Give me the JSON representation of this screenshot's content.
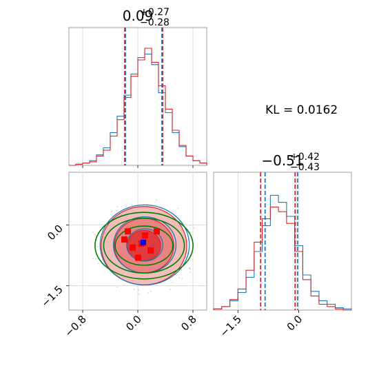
{
  "chart_data": {
    "type": "corner",
    "kl_label": "KL = 0.0162",
    "colors": {
      "series_a": "#1f77b4",
      "series_b": "#d62728",
      "gaussian": "#008000",
      "true_point": "#0000ff",
      "samples": "#ff0000"
    },
    "param1": {
      "title_value": "0.09",
      "title_plus": "+0.27",
      "title_minus": "−0.28",
      "median": 0.09,
      "plus": 0.27,
      "minus": 0.28,
      "range": [
        -1.0,
        1.0
      ],
      "ticks": [
        -0.8,
        0.0,
        0.8
      ],
      "tick_labels": [
        "−0.8",
        "0.0",
        "0.8"
      ],
      "quantiles_b": [
        -0.19,
        0.36
      ],
      "quantiles_a": [
        -0.18,
        0.35
      ]
    },
    "param2": {
      "title_value": "−0.51",
      "title_plus": "+0.42",
      "title_minus": "−0.43",
      "median": -0.51,
      "plus": 0.42,
      "minus": 0.43,
      "range": [
        -2.1,
        1.3
      ],
      "ticks": [
        -1.5,
        0.0
      ],
      "tick_labels": [
        "−1.5",
        "0.0"
      ],
      "quantiles_b": [
        -0.94,
        -0.09
      ],
      "quantiles_a": [
        -0.83,
        -0.03
      ]
    },
    "joint_points_b": [
      [
        -0.15,
        -0.15
      ],
      [
        0.1,
        -0.25
      ],
      [
        0.27,
        -0.15
      ],
      [
        -0.08,
        -0.55
      ],
      [
        0.18,
        -0.62
      ],
      [
        0.0,
        -0.8
      ],
      [
        -0.2,
        -0.35
      ],
      [
        0.05,
        -0.45
      ]
    ],
    "true_point": [
      0.08,
      -0.43
    ],
    "hist1": [
      {
        "x": -1.0,
        "a": 0,
        "b": 0
      },
      {
        "x": -0.9,
        "a": 0.01,
        "b": 0.01
      },
      {
        "x": -0.8,
        "a": 0.02,
        "b": 0.02
      },
      {
        "x": -0.7,
        "a": 0.04,
        "b": 0.03
      },
      {
        "x": -0.6,
        "a": 0.09,
        "b": 0.08
      },
      {
        "x": -0.5,
        "a": 0.15,
        "b": 0.13
      },
      {
        "x": -0.4,
        "a": 0.28,
        "b": 0.25
      },
      {
        "x": -0.3,
        "a": 0.42,
        "b": 0.39
      },
      {
        "x": -0.2,
        "a": 0.6,
        "b": 0.58
      },
      {
        "x": -0.1,
        "a": 0.78,
        "b": 0.76
      },
      {
        "x": 0.0,
        "a": 0.92,
        "b": 0.9
      },
      {
        "x": 0.1,
        "a": 0.95,
        "b": 1.0
      },
      {
        "x": 0.2,
        "a": 0.86,
        "b": 0.88
      },
      {
        "x": 0.3,
        "a": 0.62,
        "b": 0.68
      },
      {
        "x": 0.4,
        "a": 0.45,
        "b": 0.48
      },
      {
        "x": 0.5,
        "a": 0.28,
        "b": 0.3
      },
      {
        "x": 0.6,
        "a": 0.16,
        "b": 0.17
      },
      {
        "x": 0.7,
        "a": 0.08,
        "b": 0.08
      },
      {
        "x": 0.8,
        "a": 0.04,
        "b": 0.04
      },
      {
        "x": 0.9,
        "a": 0.02,
        "b": 0.02
      }
    ],
    "hist2": [
      {
        "x": -2.1,
        "a": 0.01,
        "b": 0.01
      },
      {
        "x": -1.9,
        "a": 0.03,
        "b": 0.03
      },
      {
        "x": -1.7,
        "a": 0.08,
        "b": 0.09
      },
      {
        "x": -1.5,
        "a": 0.15,
        "b": 0.18
      },
      {
        "x": -1.3,
        "a": 0.28,
        "b": 0.34
      },
      {
        "x": -1.1,
        "a": 0.5,
        "b": 0.58
      },
      {
        "x": -0.9,
        "a": 0.72,
        "b": 0.78
      },
      {
        "x": -0.7,
        "a": 0.98,
        "b": 0.88
      },
      {
        "x": -0.5,
        "a": 0.92,
        "b": 0.84
      },
      {
        "x": -0.3,
        "a": 0.8,
        "b": 0.74
      },
      {
        "x": -0.1,
        "a": 0.55,
        "b": 0.5
      },
      {
        "x": 0.1,
        "a": 0.3,
        "b": 0.26
      },
      {
        "x": 0.3,
        "a": 0.16,
        "b": 0.12
      },
      {
        "x": 0.5,
        "a": 0.08,
        "b": 0.05
      },
      {
        "x": 0.7,
        "a": 0.05,
        "b": 0.03
      },
      {
        "x": 0.9,
        "a": 0.02,
        "b": 0.01
      },
      {
        "x": 1.1,
        "a": 0.01,
        "b": 0.0
      }
    ],
    "contour_levels": [
      0.39,
      0.86,
      0.99
    ],
    "gaussian_levels": [
      1.0,
      1.4,
      1.7
    ]
  }
}
